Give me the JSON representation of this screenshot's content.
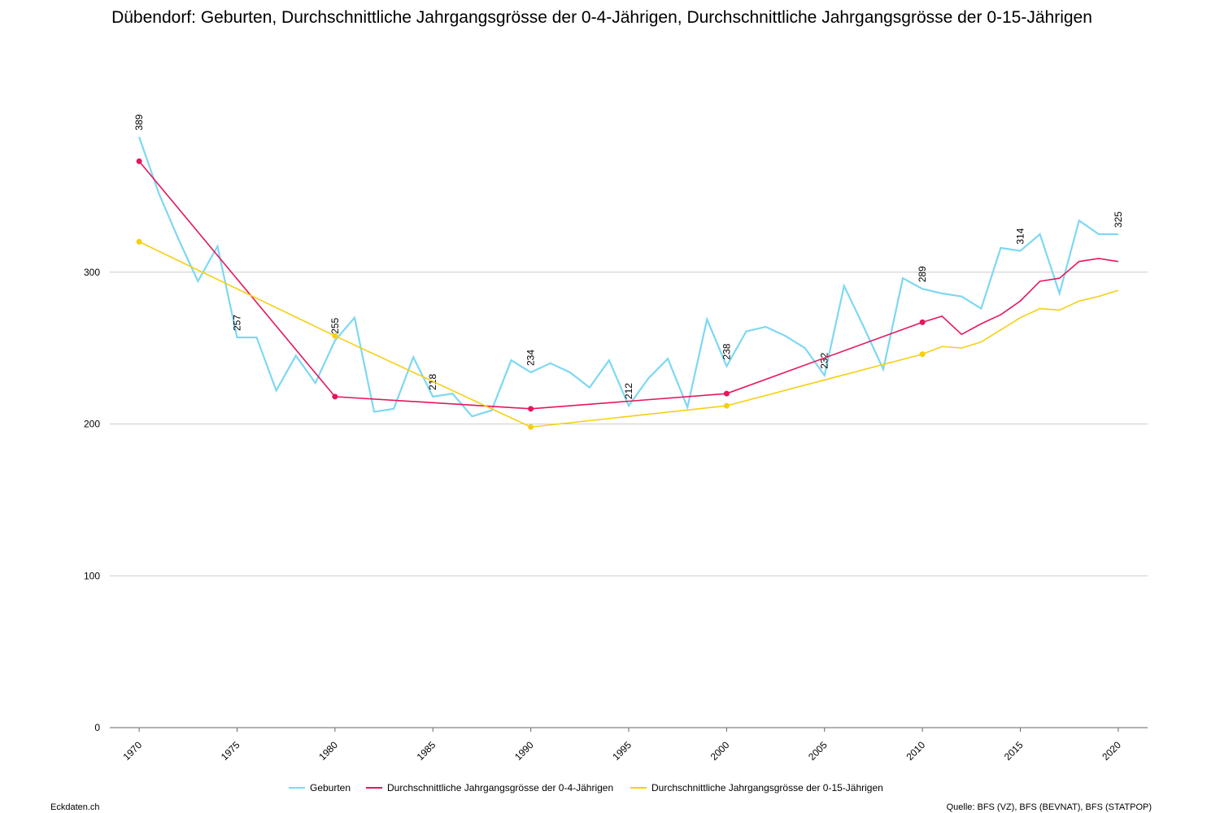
{
  "chart_data": {
    "type": "line",
    "title": "Dübendorf: Geburten, Durchschnittliche Jahrgangsgrösse der 0-4-Jährigen, Durchschnittliche Jahrgangsgrösse der 0-15-Jährigen",
    "xlim": [
      1968.5,
      2021.5
    ],
    "xticks": [
      1970,
      1975,
      1980,
      1985,
      1990,
      1995,
      2000,
      2005,
      2010,
      2015,
      2020
    ],
    "ylim": [
      0,
      400
    ],
    "yticks": [
      0,
      100,
      200,
      300
    ],
    "grid": true,
    "legend": "bottom",
    "series": [
      {
        "name": "Geburten",
        "color": "#7dd8f3",
        "x": [
          1970,
          1971,
          1972,
          1973,
          1974,
          1975,
          1976,
          1977,
          1978,
          1979,
          1980,
          1981,
          1982,
          1983,
          1984,
          1985,
          1986,
          1987,
          1988,
          1989,
          1990,
          1991,
          1992,
          1993,
          1994,
          1995,
          1996,
          1997,
          1998,
          1999,
          2000,
          2001,
          2002,
          2003,
          2004,
          2005,
          2006,
          2007,
          2008,
          2009,
          2010,
          2011,
          2012,
          2013,
          2014,
          2015,
          2016,
          2017,
          2018,
          2019,
          2020
        ],
        "values": [
          389,
          352,
          322,
          294,
          317,
          257,
          257,
          222,
          245,
          227,
          255,
          270,
          208,
          210,
          244,
          218,
          220,
          205,
          209,
          242,
          234,
          240,
          234,
          224,
          242,
          212,
          230,
          243,
          211,
          269,
          238,
          261,
          264,
          258,
          250,
          232,
          291,
          264,
          236,
          296,
          289,
          286,
          284,
          276,
          316,
          314,
          325,
          286,
          334,
          325,
          325
        ]
      },
      {
        "name": "Durchschnittliche Jahrgangsgrösse der 0-4-Jährigen",
        "color": "#e5175a",
        "x": [
          1970,
          1980,
          1985,
          1990,
          1995,
          2000,
          2010,
          2011,
          2012,
          2013,
          2014,
          2015,
          2016,
          2017,
          2018,
          2019,
          2020
        ],
        "values": [
          373,
          218,
          214,
          210,
          215,
          220,
          267,
          271,
          259,
          266,
          272,
          281,
          294,
          296,
          307,
          309,
          307
        ]
      },
      {
        "name": "Durchschnittliche Jahrgangsgrösse der 0-15-Jährigen",
        "color": "#f7cf10",
        "x": [
          1970,
          1980,
          1990,
          2000,
          2010,
          2011,
          2012,
          2013,
          2014,
          2015,
          2016,
          2017,
          2018,
          2019,
          2020
        ],
        "values": [
          320,
          258,
          198,
          212,
          246,
          251,
          250,
          254,
          262,
          270,
          276,
          275,
          281,
          284,
          288
        ]
      }
    ],
    "footer_left": "Eckdaten.ch",
    "footer_right": "Quelle: BFS (VZ), BFS (BEVNAT), BFS (STATPOP)"
  }
}
